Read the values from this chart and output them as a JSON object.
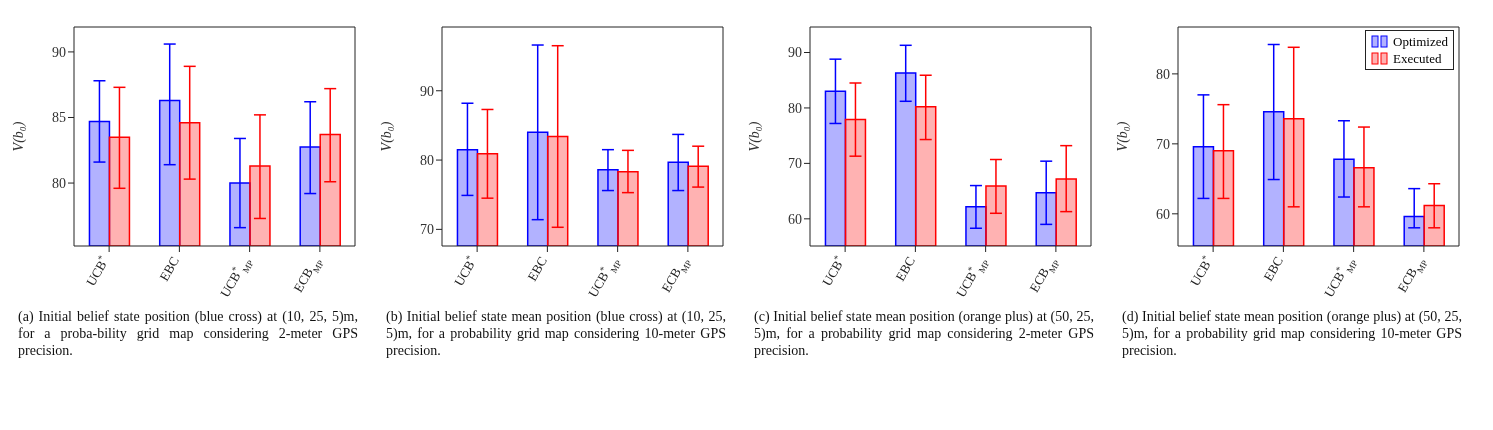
{
  "chart_data": [
    {
      "type": "bar",
      "categories": [
        "UCB$^{*}$",
        "EBC",
        "UCB$^{*}$$_{MP}$",
        "ECB$_{MP}$"
      ],
      "ylabel": "V(b₀)",
      "ylim": [
        75.2,
        91.9
      ],
      "yticks": [
        80,
        85,
        90
      ],
      "grid": false,
      "legend": false,
      "series": [
        {
          "color": "#0000ff",
          "values": [
            84.7,
            86.3,
            80.0,
            82.75
          ],
          "errors": [
            [
              81.6,
              87.8
            ],
            [
              81.4,
              90.6
            ],
            [
              76.6,
              83.4
            ],
            [
              79.2,
              86.2
            ]
          ]
        },
        {
          "color": "#ff0000",
          "values": [
            83.5,
            84.6,
            81.3,
            83.7
          ],
          "errors": [
            [
              79.6,
              87.3
            ],
            [
              80.3,
              88.9
            ],
            [
              77.3,
              85.2
            ],
            [
              80.1,
              87.2
            ]
          ]
        }
      ],
      "annotations": [
        "(a) Initial belief state position (blue cross) at (10, 25, 5)m, for a proba-bility grid map considering 2-meter GPS precision."
      ]
    },
    {
      "type": "bar",
      "categories": [
        "UCB$^{*}$",
        "EBC",
        "UCB$^{*}$$_{MP}$",
        "ECB$_{MP}$"
      ],
      "ylabel": "V(b₀)",
      "ylim": [
        67.6,
        99.2
      ],
      "yticks": [
        70,
        80,
        90
      ],
      "grid": false,
      "legend": false,
      "series": [
        {
          "color": "#0000ff",
          "values": [
            81.5,
            84.0,
            78.6,
            79.7
          ],
          "errors": [
            [
              74.9,
              88.2
            ],
            [
              71.4,
              96.6
            ],
            [
              75.6,
              81.5
            ],
            [
              75.6,
              83.7
            ]
          ]
        },
        {
          "color": "#ff0000",
          "values": [
            80.9,
            83.4,
            78.3,
            79.1
          ],
          "errors": [
            [
              74.5,
              87.3
            ],
            [
              70.3,
              96.5
            ],
            [
              75.3,
              81.4
            ],
            [
              76.1,
              82.0
            ]
          ]
        }
      ],
      "annotations": [
        "(b) Initial belief state mean position (blue cross) at (10, 25, 5)m, for a probability grid map considering 10-meter GPS precision."
      ]
    },
    {
      "type": "bar",
      "categories": [
        "UCB$^{*}$",
        "EBC",
        "UCB$^{*}$$_{MP}$",
        "ECB$_{MP}$"
      ],
      "ylabel": "V(b₀)",
      "ylim": [
        55.1,
        94.6
      ],
      "yticks": [
        60,
        70,
        80,
        90
      ],
      "grid": false,
      "legend": false,
      "series": [
        {
          "color": "#0000ff",
          "values": [
            83.0,
            86.3,
            62.2,
            64.7
          ],
          "errors": [
            [
              77.2,
              88.8
            ],
            [
              81.2,
              91.3
            ],
            [
              58.3,
              66.0
            ],
            [
              59.0,
              70.4
            ]
          ]
        },
        {
          "color": "#ff0000",
          "values": [
            77.9,
            80.2,
            65.9,
            67.2
          ],
          "errors": [
            [
              71.3,
              84.5
            ],
            [
              74.3,
              85.9
            ],
            [
              61.0,
              70.7
            ],
            [
              61.3,
              73.2
            ]
          ]
        }
      ],
      "annotations": [
        "(c) Initial belief state mean position (orange plus) at (50, 25, 5)m, for a probability grid map considering 2-meter GPS precision."
      ]
    },
    {
      "type": "bar",
      "categories": [
        "UCB$^{*}$",
        "EBC",
        "UCB$^{*}$$_{MP}$",
        "ECB$_{MP}$"
      ],
      "ylabel": "V(b₀)",
      "ylim": [
        55.4,
        86.7
      ],
      "yticks": [
        60,
        70,
        80
      ],
      "grid": false,
      "legend": "top right",
      "series": [
        {
          "name": "Optimized",
          "color": "#0000ff",
          "values": [
            69.6,
            74.6,
            67.8,
            59.6
          ],
          "errors": [
            [
              62.2,
              77.0
            ],
            [
              64.9,
              84.2
            ],
            [
              62.4,
              73.3
            ],
            [
              58.0,
              63.6
            ]
          ]
        },
        {
          "name": "Executed",
          "color": "#ff0000",
          "values": [
            69.0,
            73.6,
            66.6,
            61.2
          ],
          "errors": [
            [
              62.2,
              75.6
            ],
            [
              61.0,
              83.8
            ],
            [
              61.0,
              72.4
            ],
            [
              58.0,
              64.3
            ]
          ]
        }
      ],
      "annotations": [
        "(d) Initial belief state mean position (orange plus) at (50, 25, 5)m, for a probability grid map considering 10-meter GPS precision."
      ]
    }
  ]
}
